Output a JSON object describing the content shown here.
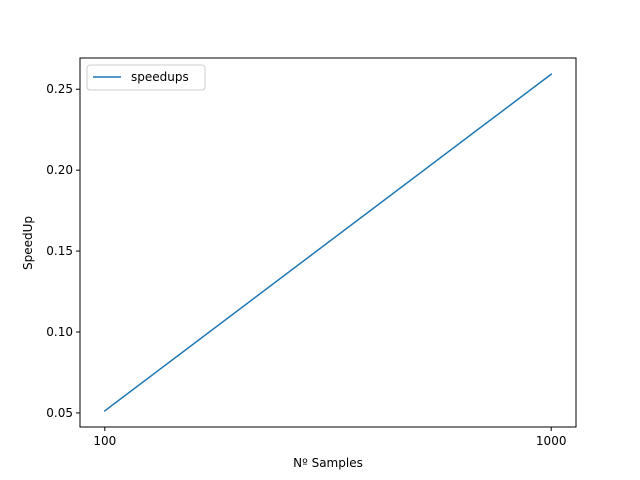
{
  "chart_data": {
    "type": "line",
    "title": "",
    "xlabel": "Nº Samples",
    "ylabel": "SpeedUp",
    "x": [
      100,
      1000
    ],
    "x_tick_values": [
      100,
      1000
    ],
    "x_tick_labels": [
      "100",
      "1000"
    ],
    "xlim": [
      50,
      1050
    ],
    "y_tick_values": [
      0.05,
      0.1,
      0.15,
      0.2,
      0.25
    ],
    "y_tick_labels": [
      "0.05",
      "0.10",
      "0.15",
      "0.20",
      "0.25"
    ],
    "ylim": [
      0.0413,
      0.2693
    ],
    "series": [
      {
        "name": "speedups",
        "color": "#1f77b4",
        "y": [
          0.0513,
          0.2593
        ]
      }
    ],
    "legend": {
      "position": "upper-left",
      "entries": [
        "speedups"
      ]
    },
    "grid": false
  }
}
